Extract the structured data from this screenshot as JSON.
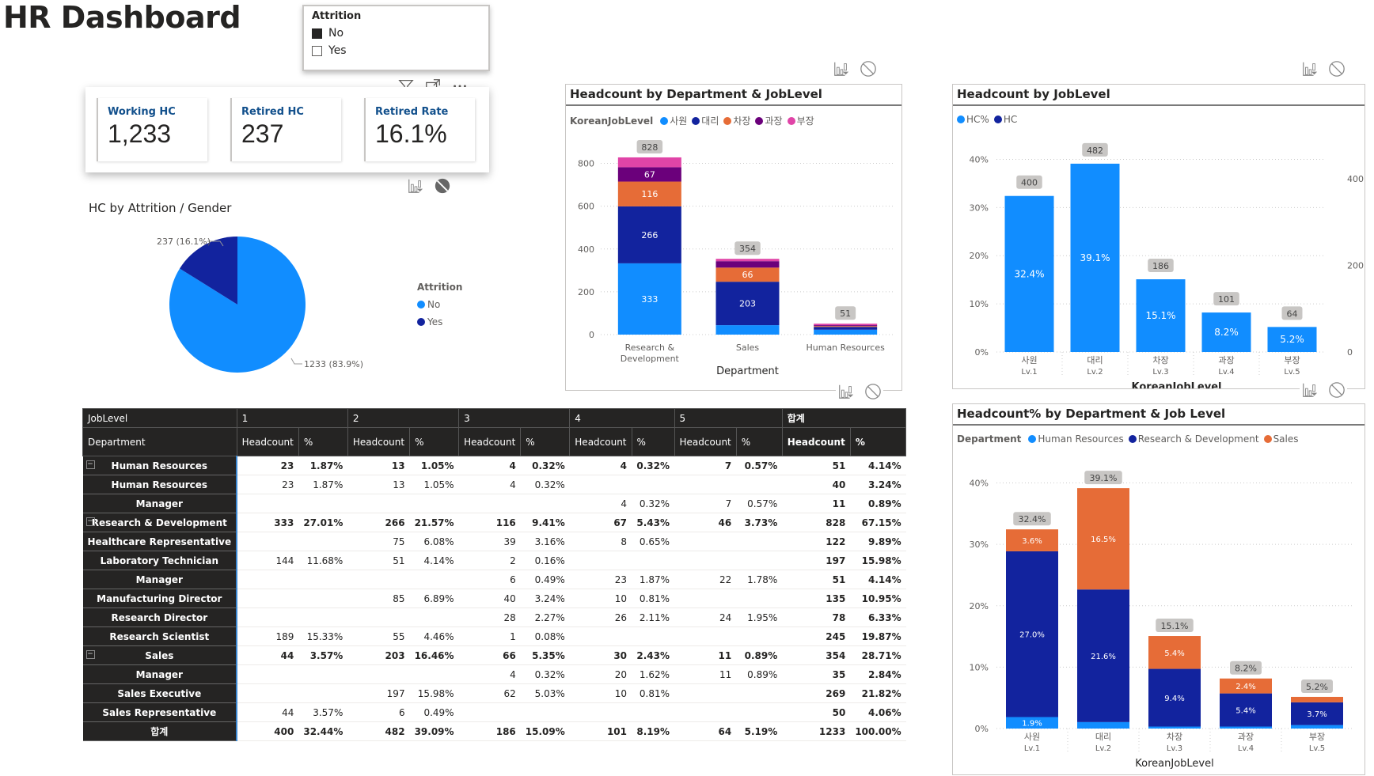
{
  "page_title": "HR Dashboard",
  "slicer": {
    "title": "Attrition",
    "items": [
      {
        "label": "No",
        "checked": true
      },
      {
        "label": "Yes",
        "checked": false
      }
    ]
  },
  "cards": [
    {
      "label": "Working HC",
      "value": "1,233"
    },
    {
      "label": "Retired HC",
      "value": "237"
    },
    {
      "label": "Retired Rate",
      "value": "16.1%"
    }
  ],
  "icons": {
    "filter": "filter-icon",
    "focus": "focus-mode-icon",
    "more": "more-options-icon",
    "drill": "drill-filter-icon",
    "none": "no-interaction-icon"
  },
  "colors": {
    "light_blue": "#118DFF",
    "dark_blue": "#12239E",
    "orange": "#E66C37",
    "purple": "#6B007B",
    "pink": "#E044A7",
    "label_bg": "#C8C6C4"
  },
  "pie": {
    "title": "HC by Attrition / Gender",
    "legend_title": "Attrition",
    "slices": [
      {
        "label": "No",
        "value": 1233,
        "pct": "83.9%",
        "display": "1233 (83.9%)",
        "color": "#118DFF"
      },
      {
        "label": "Yes",
        "value": 237,
        "pct": "16.1%",
        "display": "237 (16.1%)",
        "color": "#12239E"
      }
    ]
  },
  "chart_data": [
    {
      "type": "bar",
      "stacked": true,
      "title": "Headcount by Department & JobLevel",
      "legend_title": "KoreanJobLevel",
      "legend": "top-left",
      "xlabel": "Department",
      "ylabel": "",
      "ylim": [
        0,
        850
      ],
      "yticks": [
        0,
        200,
        400,
        600,
        800
      ],
      "categories": [
        "Research & Development",
        "Sales",
        "Human Resources"
      ],
      "category_lines": [
        [
          "Research &",
          "Development"
        ],
        [
          "Sales"
        ],
        [
          "Human Resources"
        ]
      ],
      "totals": [
        828,
        354,
        51
      ],
      "series": [
        {
          "name": "사원",
          "color": "#118DFF",
          "values": [
            333,
            44,
            23
          ]
        },
        {
          "name": "대리",
          "color": "#12239E",
          "values": [
            266,
            203,
            13
          ]
        },
        {
          "name": "차장",
          "color": "#E66C37",
          "values": [
            116,
            66,
            4
          ]
        },
        {
          "name": "과장",
          "color": "#6B007B",
          "values": [
            67,
            30,
            4
          ]
        },
        {
          "name": "부장",
          "color": "#E044A7",
          "values": [
            46,
            11,
            7
          ]
        }
      ],
      "labels_shown": [
        [
          333,
          null,
          null
        ],
        [
          266,
          203,
          null
        ],
        [
          116,
          66,
          null
        ],
        [
          67,
          null,
          null
        ],
        [
          null,
          null,
          null
        ]
      ],
      "grid": true
    },
    {
      "type": "bar",
      "title": "Headcount by JobLevel",
      "legend": "top-left",
      "legend_items": [
        {
          "name": "HC%",
          "color": "#118DFF"
        },
        {
          "name": "HC",
          "color": "#12239E"
        }
      ],
      "xlabel": "KoreanJobLevel",
      "categories": [
        "사원",
        "대리",
        "차장",
        "과장",
        "부장"
      ],
      "subcategories": [
        "Lv.1",
        "Lv.2",
        "Lv.3",
        "Lv.4",
        "Lv.5"
      ],
      "ylim": [
        0,
        45
      ],
      "yticks": [
        "0%",
        "10%",
        "20%",
        "30%",
        "40%"
      ],
      "y2lim": [
        0,
        500
      ],
      "y2ticks": [
        "0",
        "200",
        "400"
      ],
      "series": [
        {
          "name": "HC%",
          "values": [
            32.4,
            39.1,
            15.1,
            8.2,
            5.2
          ],
          "labels": [
            "32.4%",
            "39.1%",
            "15.1%",
            "8.2%",
            "5.2%"
          ]
        },
        {
          "name": "HC",
          "values": [
            400,
            482,
            186,
            101,
            64
          ]
        }
      ],
      "grid": true
    },
    {
      "type": "bar",
      "stacked": true,
      "title": "Headcount% by Department & Job Level",
      "legend_title": "Department",
      "legend": "top-left",
      "xlabel": "KoreanJobLevel",
      "categories": [
        "사원",
        "대리",
        "차장",
        "과장",
        "부장"
      ],
      "subcategories": [
        "Lv.1",
        "Lv.2",
        "Lv.3",
        "Lv.4",
        "Lv.5"
      ],
      "ylim": [
        0,
        42
      ],
      "yticks": [
        "0%",
        "10%",
        "20%",
        "30%",
        "40%"
      ],
      "totals": [
        "32.4%",
        "39.1%",
        "15.1%",
        "8.2%",
        "5.2%"
      ],
      "series": [
        {
          "name": "Human Resources",
          "color": "#118DFF",
          "values": [
            1.87,
            1.05,
            0.32,
            0.32,
            0.57
          ],
          "labels": [
            "1.9%",
            "",
            "",
            "",
            ""
          ]
        },
        {
          "name": "Research & Development",
          "color": "#12239E",
          "values": [
            27.0,
            21.6,
            9.4,
            5.4,
            3.7
          ],
          "labels": [
            "27.0%",
            "21.6%",
            "9.4%",
            "5.4%",
            "3.7%"
          ]
        },
        {
          "name": "Sales",
          "color": "#E66C37",
          "values": [
            3.57,
            16.5,
            5.35,
            2.43,
            0.89
          ],
          "labels": [
            "3.6%",
            "16.5%",
            "5.4%",
            "2.4%",
            ""
          ]
        }
      ],
      "grid": true
    }
  ],
  "matrix": {
    "corner_top": "JobLevel",
    "corner_bottom": "Department",
    "levels": [
      "1",
      "2",
      "3",
      "4",
      "5",
      "합계"
    ],
    "measures": [
      "Headcount",
      "%"
    ],
    "rows": [
      {
        "label": "Human Resources",
        "type": "sub",
        "vals": [
          "23",
          "1.87%",
          "13",
          "1.05%",
          "4",
          "0.32%",
          "4",
          "0.32%",
          "7",
          "0.57%",
          "51",
          "4.14%"
        ]
      },
      {
        "label": "Human Resources",
        "type": "leaf",
        "vals": [
          "23",
          "1.87%",
          "13",
          "1.05%",
          "4",
          "0.32%",
          "",
          "",
          "",
          "",
          "40",
          "3.24%"
        ]
      },
      {
        "label": "Manager",
        "type": "leaf",
        "vals": [
          "",
          "",
          "",
          "",
          "",
          "",
          "4",
          "0.32%",
          "7",
          "0.57%",
          "11",
          "0.89%"
        ]
      },
      {
        "label": "Research & Development",
        "type": "sub",
        "vals": [
          "333",
          "27.01%",
          "266",
          "21.57%",
          "116",
          "9.41%",
          "67",
          "5.43%",
          "46",
          "3.73%",
          "828",
          "67.15%"
        ]
      },
      {
        "label": "Healthcare Representative",
        "type": "leaf",
        "vals": [
          "",
          "",
          "75",
          "6.08%",
          "39",
          "3.16%",
          "8",
          "0.65%",
          "",
          "",
          "122",
          "9.89%"
        ]
      },
      {
        "label": "Laboratory Technician",
        "type": "leaf",
        "vals": [
          "144",
          "11.68%",
          "51",
          "4.14%",
          "2",
          "0.16%",
          "",
          "",
          "",
          "",
          "197",
          "15.98%"
        ]
      },
      {
        "label": "Manager",
        "type": "leaf",
        "vals": [
          "",
          "",
          "",
          "",
          "6",
          "0.49%",
          "23",
          "1.87%",
          "22",
          "1.78%",
          "51",
          "4.14%"
        ]
      },
      {
        "label": "Manufacturing Director",
        "type": "leaf",
        "vals": [
          "",
          "",
          "85",
          "6.89%",
          "40",
          "3.24%",
          "10",
          "0.81%",
          "",
          "",
          "135",
          "10.95%"
        ]
      },
      {
        "label": "Research Director",
        "type": "leaf",
        "vals": [
          "",
          "",
          "",
          "",
          "28",
          "2.27%",
          "26",
          "2.11%",
          "24",
          "1.95%",
          "78",
          "6.33%"
        ]
      },
      {
        "label": "Research Scientist",
        "type": "leaf",
        "vals": [
          "189",
          "15.33%",
          "55",
          "4.46%",
          "1",
          "0.08%",
          "",
          "",
          "",
          "",
          "245",
          "19.87%"
        ]
      },
      {
        "label": "Sales",
        "type": "sub",
        "vals": [
          "44",
          "3.57%",
          "203",
          "16.46%",
          "66",
          "5.35%",
          "30",
          "2.43%",
          "11",
          "0.89%",
          "354",
          "28.71%"
        ]
      },
      {
        "label": "Manager",
        "type": "leaf",
        "vals": [
          "",
          "",
          "",
          "",
          "4",
          "0.32%",
          "20",
          "1.62%",
          "11",
          "0.89%",
          "35",
          "2.84%"
        ]
      },
      {
        "label": "Sales Executive",
        "type": "leaf",
        "vals": [
          "",
          "",
          "197",
          "15.98%",
          "62",
          "5.03%",
          "10",
          "0.81%",
          "",
          "",
          "269",
          "21.82%"
        ]
      },
      {
        "label": "Sales Representative",
        "type": "leaf",
        "vals": [
          "44",
          "3.57%",
          "6",
          "0.49%",
          "",
          "",
          "",
          "",
          "",
          "",
          "50",
          "4.06%"
        ]
      },
      {
        "label": "합계",
        "type": "tot",
        "vals": [
          "400",
          "32.44%",
          "482",
          "39.09%",
          "186",
          "15.09%",
          "101",
          "8.19%",
          "64",
          "5.19%",
          "1233",
          "100.00%"
        ]
      }
    ]
  }
}
